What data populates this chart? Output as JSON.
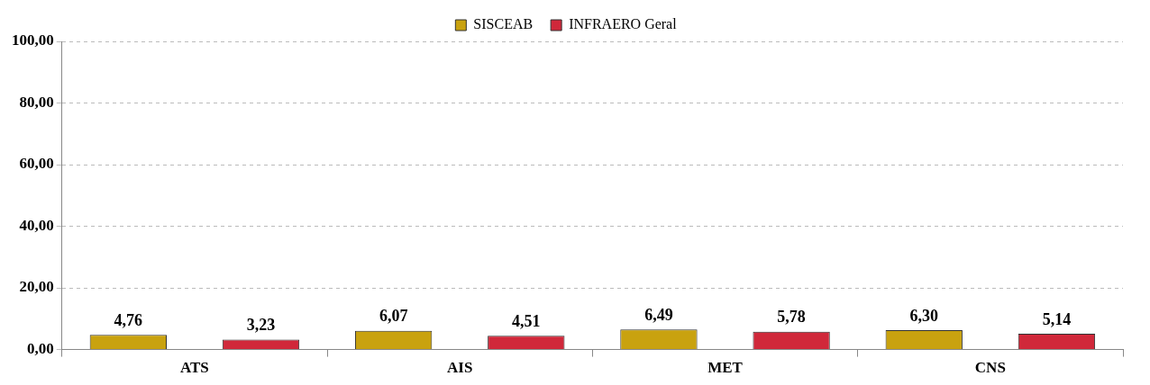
{
  "chart_data": {
    "type": "bar",
    "categories": [
      "ATS",
      "AIS",
      "MET",
      "CNS"
    ],
    "series": [
      {
        "name": "SISCEAB",
        "color": "#c9a20f",
        "values": [
          4.76,
          6.07,
          6.49,
          6.3
        ],
        "value_labels": [
          "4,76",
          "6,07",
          "6,49",
          "6,30"
        ]
      },
      {
        "name": "INFRAERO Geral",
        "color": "#d0283a",
        "values": [
          3.23,
          4.51,
          5.78,
          5.14
        ],
        "value_labels": [
          "3,23",
          "4,51",
          "5,78",
          "5,14"
        ]
      }
    ],
    "ylim": [
      0,
      100
    ],
    "yticks": [
      {
        "value": 0,
        "label": "0,00"
      },
      {
        "value": 20,
        "label": "20,00"
      },
      {
        "value": 40,
        "label": "40,00"
      },
      {
        "value": 60,
        "label": "60,00"
      },
      {
        "value": 80,
        "label": "80,00"
      },
      {
        "value": 100,
        "label": "100,00"
      }
    ],
    "grid": "y",
    "legend": "top"
  }
}
